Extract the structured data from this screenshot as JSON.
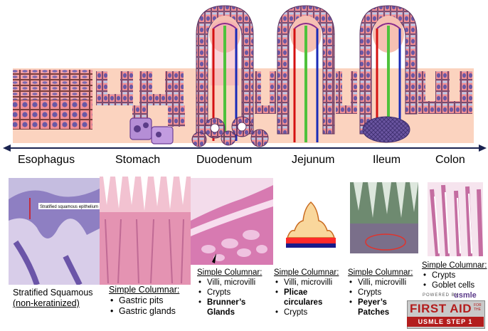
{
  "segments": [
    "Esophagus",
    "Stomach",
    "Duodenum",
    "Jejunum",
    "Ileum",
    "Colon"
  ],
  "esophagus": {
    "photo_label": "Stratified squamous epithelium",
    "caption1": "Stratified Squamous",
    "caption2": "(non-keratinized)"
  },
  "stomach": {
    "heading": "Simple Columnar:",
    "items": [
      "Gastric pits",
      "Gastric glands"
    ]
  },
  "duodenum": {
    "heading": "Simple Columnar:",
    "items": [
      "Villi, microvilli",
      "Crypts",
      "Brunner’s Glands"
    ]
  },
  "jejunum": {
    "heading": "Simple Columnar:",
    "items": [
      "Villi, microvilli",
      "Plicae circulares",
      "Crypts"
    ]
  },
  "ileum": {
    "heading": "Simple Columnar:",
    "items": [
      "Villi, microvilli",
      "Crypts",
      "Peyer’s Patches"
    ]
  },
  "colon": {
    "heading": "Simple Columnar:",
    "items": [
      "Crypts",
      "Goblet cells"
    ]
  },
  "logo": {
    "powered": "POWERED BY",
    "usmle": "usmle",
    "first_aid": "FIRST AID",
    "for_the": "FOR THE",
    "step": "USMLE STEP 1"
  },
  "colors": {
    "lamina": "#fbd3bf",
    "cell": "#f28f94",
    "nucleus": "#6a58a5",
    "goblet": "#b7c8e8",
    "artery": "#d51111",
    "lacteal": "#4fc23c",
    "vein": "#1a2bb8",
    "peyer": "#6a55a0"
  }
}
